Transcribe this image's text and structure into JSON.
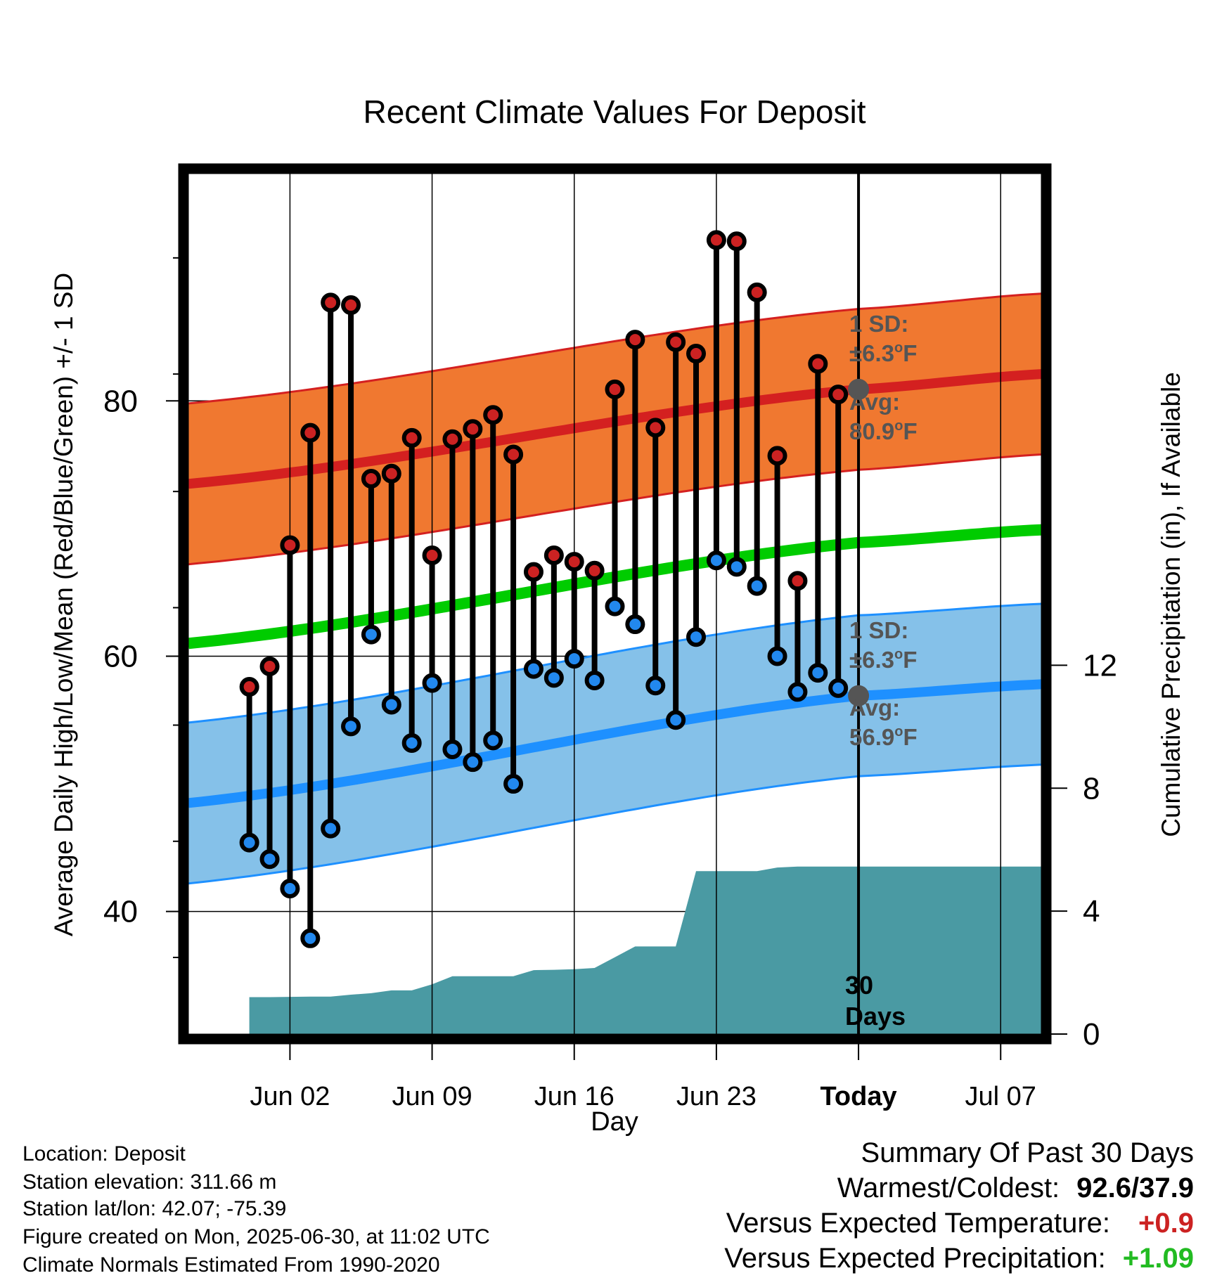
{
  "chart_data": {
    "type": "line",
    "title": "Recent Climate Values For Deposit",
    "xlabel": "Day",
    "ylabel_left": "Average Daily High/Low/Mean (Red/Blue/Green) +/- 1 SD",
    "ylabel_right": "Cumulative Precipitation (in), If Available",
    "x_ticks": [
      "Jun 02",
      "Jun 09",
      "Jun 16",
      "Jun 23",
      "Today",
      "Jul 07"
    ],
    "y_ticks_left": [
      "40",
      "60",
      "80"
    ],
    "y_ticks_right": [
      "0",
      "4",
      "8",
      "12"
    ],
    "ylim_left": [
      30.4,
      97.8
    ],
    "ylim_right": [
      0,
      28
    ],
    "x_domain": [
      "May 28",
      "Jul 09"
    ],
    "days": [
      "May 31",
      "Jun 01",
      "Jun 02",
      "Jun 03",
      "Jun 04",
      "Jun 05",
      "Jun 06",
      "Jun 07",
      "Jun 08",
      "Jun 09",
      "Jun 10",
      "Jun 11",
      "Jun 12",
      "Jun 13",
      "Jun 14",
      "Jun 15",
      "Jun 16",
      "Jun 17",
      "Jun 18",
      "Jun 19",
      "Jun 20",
      "Jun 21",
      "Jun 22",
      "Jun 23",
      "Jun 24",
      "Jun 25",
      "Jun 26",
      "Jun 27",
      "Jun 28",
      "Jun 29"
    ],
    "series": [
      {
        "name": "High",
        "color": "#cc2222",
        "values": [
          57.6,
          59.2,
          68.7,
          77.5,
          87.7,
          87.5,
          73.9,
          74.3,
          77.1,
          67.9,
          77.0,
          77.8,
          78.9,
          75.8,
          66.6,
          67.9,
          67.4,
          66.7,
          80.9,
          84.8,
          77.9,
          84.6,
          83.7,
          92.6,
          92.5,
          88.5,
          75.7,
          65.9,
          82.9,
          80.5
        ]
      },
      {
        "name": "Low",
        "color": "#2288ee",
        "values": [
          45.4,
          44.1,
          41.8,
          37.9,
          46.5,
          54.5,
          61.7,
          56.2,
          53.2,
          57.9,
          52.7,
          51.7,
          53.4,
          50.0,
          59.0,
          58.3,
          59.8,
          58.1,
          63.9,
          62.5,
          57.7,
          55.0,
          61.5,
          67.5,
          67.0,
          65.5,
          60.0,
          57.2,
          58.7,
          57.5
        ]
      },
      {
        "name": "Cumulative precipitation",
        "color": "#4a9aa3",
        "values": [
          1.2,
          1.2,
          1.21,
          1.22,
          1.22,
          1.28,
          1.33,
          1.42,
          1.42,
          1.62,
          1.88,
          1.88,
          1.88,
          1.88,
          2.08,
          2.09,
          2.11,
          2.15,
          2.5,
          2.85,
          2.85,
          2.85,
          5.3,
          5.3,
          5.3,
          5.3,
          5.42,
          5.45,
          5.45,
          5.45
        ]
      }
    ],
    "normals": {
      "x": [
        "May 28",
        "Jun 30",
        "Jul 09"
      ],
      "avg_high": [
        73.5,
        80.9,
        82.1
      ],
      "avg_low": [
        48.5,
        56.9,
        57.8
      ],
      "avg_mean": [
        61.0,
        68.9,
        69.9
      ],
      "sd": 6.3,
      "band_colors": {
        "high": "#f07830",
        "low": "#85c1e9",
        "mean": "#00cc00"
      }
    },
    "annotations": {
      "high_sd": [
        "1 SD:",
        "±6.3",
        "o",
        "F"
      ],
      "high_avg": [
        "Avg:",
        "80.9",
        "o",
        "F"
      ],
      "low_sd": [
        "1 SD:",
        "±6.3",
        "o",
        "F"
      ],
      "low_avg": [
        "Avg:",
        "56.9",
        "o",
        "F"
      ],
      "days_label": [
        "30",
        "Days"
      ],
      "today_marker": "Jun 30"
    },
    "grid": true
  },
  "info": {
    "location": "Location: Deposit",
    "elevation": "Station elevation: 311.66 m",
    "latlon": "Station lat/lon: 42.07; -75.39",
    "created": "Figure created on Mon, 2025-06-30, at 11:02 UTC",
    "normals": "Climate Normals Estimated From 1990-2020"
  },
  "summary": {
    "title": "Summary Of Past 30 Days",
    "warm_cold_label": "Warmest/Coldest:",
    "warm_cold_value": "92.6/37.9",
    "temp_label": "Versus Expected Temperature:",
    "temp_value": "+0.9",
    "temp_color": "#cc2222",
    "precip_label": "Versus Expected Precipitation:",
    "precip_value": "+1.09",
    "precip_color": "#22bb22"
  }
}
